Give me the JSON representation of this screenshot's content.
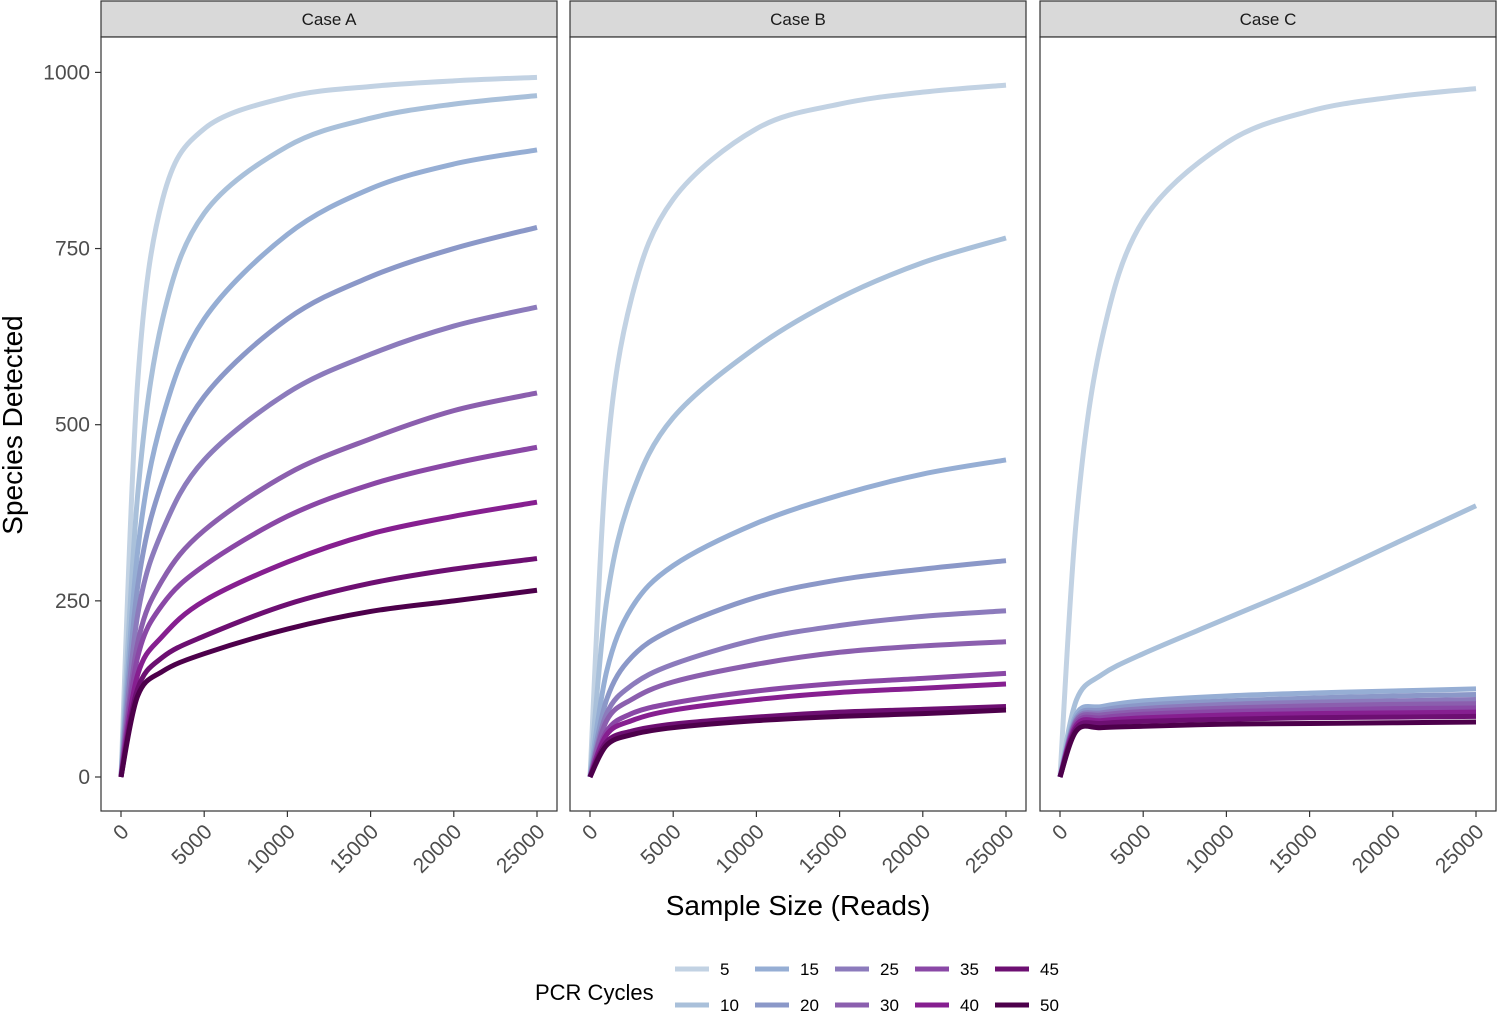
{
  "chart_data": {
    "type": "line",
    "facet_panels": [
      "Case A",
      "Case B",
      "Case C"
    ],
    "xlabel": "Sample Size (Reads)",
    "ylabel": "Species Detected",
    "xlim": [
      0,
      25000
    ],
    "ylim": [
      0,
      1000
    ],
    "x_ticks": [
      0,
      5000,
      10000,
      15000,
      20000,
      25000
    ],
    "y_ticks": [
      0,
      250,
      500,
      750,
      1000
    ],
    "legend": {
      "title": "PCR Cycles",
      "position": "bottom",
      "entries": [
        "5",
        "10",
        "15",
        "20",
        "25",
        "30",
        "35",
        "40",
        "45",
        "50"
      ]
    },
    "colors": [
      "#c2d2e3",
      "#a9c0da",
      "#96aed4",
      "#8b98c8",
      "#8c7bbc",
      "#8b5fae",
      "#8a48a6",
      "#861f90",
      "#6d0f72",
      "#4d004b"
    ],
    "x": [
      0,
      1000,
      2500,
      5000,
      10000,
      15000,
      20000,
      25000
    ],
    "panels": [
      {
        "title": "Case A",
        "series": [
          {
            "name": "5",
            "values": [
              0,
              560,
              820,
              920,
              965,
              980,
              988,
              993
            ]
          },
          {
            "name": "10",
            "values": [
              0,
              400,
              650,
              800,
              895,
              935,
              955,
              967
            ]
          },
          {
            "name": "15",
            "values": [
              0,
              320,
              510,
              650,
              770,
              835,
              870,
              890
            ]
          },
          {
            "name": "20",
            "values": [
              0,
              270,
              420,
              540,
              650,
              710,
              750,
              780
            ]
          },
          {
            "name": "25",
            "values": [
              0,
              230,
              350,
              450,
              545,
              600,
              640,
              667
            ]
          },
          {
            "name": "30",
            "values": [
              0,
              190,
              280,
              350,
              430,
              480,
              520,
              545
            ]
          },
          {
            "name": "35",
            "values": [
              0,
              170,
              245,
              300,
              370,
              415,
              445,
              468
            ]
          },
          {
            "name": "40",
            "values": [
              0,
              145,
              200,
              250,
              305,
              345,
              370,
              390
            ]
          },
          {
            "name": "45",
            "values": [
              0,
              125,
              170,
              200,
              245,
              275,
              295,
              310
            ]
          },
          {
            "name": "50",
            "values": [
              0,
              115,
              150,
              175,
              210,
              235,
              250,
              265
            ]
          }
        ]
      },
      {
        "title": "Case B",
        "series": [
          {
            "name": "5",
            "values": [
              0,
              450,
              680,
              820,
              920,
              955,
              972,
              982
            ]
          },
          {
            "name": "10",
            "values": [
              0,
              250,
              400,
              510,
              610,
              680,
              730,
              765
            ]
          },
          {
            "name": "15",
            "values": [
              0,
              150,
              240,
              300,
              360,
              400,
              430,
              450
            ]
          },
          {
            "name": "20",
            "values": [
              0,
              110,
              170,
              210,
              255,
              280,
              295,
              307
            ]
          },
          {
            "name": "25",
            "values": [
              0,
              90,
              130,
              160,
              195,
              215,
              228,
              236
            ]
          },
          {
            "name": "30",
            "values": [
              0,
              80,
              110,
              135,
              160,
              177,
              186,
              192
            ]
          },
          {
            "name": "35",
            "values": [
              0,
              65,
              90,
              105,
              122,
              133,
              140,
              147
            ]
          },
          {
            "name": "40",
            "values": [
              0,
              60,
              80,
              95,
              110,
              120,
              126,
              132
            ]
          },
          {
            "name": "45",
            "values": [
              0,
              50,
              65,
              75,
              85,
              92,
              96,
              100
            ]
          },
          {
            "name": "50",
            "values": [
              0,
              45,
              60,
              70,
              80,
              86,
              90,
              95
            ]
          }
        ]
      },
      {
        "title": "Case C",
        "series": [
          {
            "name": "5",
            "values": [
              0,
              370,
              620,
              790,
              900,
              945,
              965,
              977
            ]
          },
          {
            "name": "10",
            "values": [
              0,
              110,
              145,
              175,
              225,
              275,
              330,
              385
            ]
          },
          {
            "name": "15",
            "values": [
              0,
              90,
              100,
              108,
              115,
              119,
              122,
              125
            ]
          },
          {
            "name": "20",
            "values": [
              0,
              85,
              95,
              102,
              108,
              112,
              115,
              117
            ]
          },
          {
            "name": "25",
            "values": [
              0,
              82,
              91,
              97,
              103,
              106,
              108,
              110
            ]
          },
          {
            "name": "30",
            "values": [
              0,
              80,
              88,
              93,
              98,
              101,
              103,
              104
            ]
          },
          {
            "name": "35",
            "values": [
              0,
              77,
              84,
              89,
              93,
              95,
              97,
              98
            ]
          },
          {
            "name": "40",
            "values": [
              0,
              74,
              80,
              84,
              88,
              90,
              91,
              92
            ]
          },
          {
            "name": "45",
            "values": [
              0,
              70,
              76,
              79,
              82,
              84,
              85,
              86
            ]
          },
          {
            "name": "50",
            "values": [
              0,
              66,
              70,
              72,
              75,
              76,
              77,
              78
            ]
          }
        ]
      }
    ]
  }
}
